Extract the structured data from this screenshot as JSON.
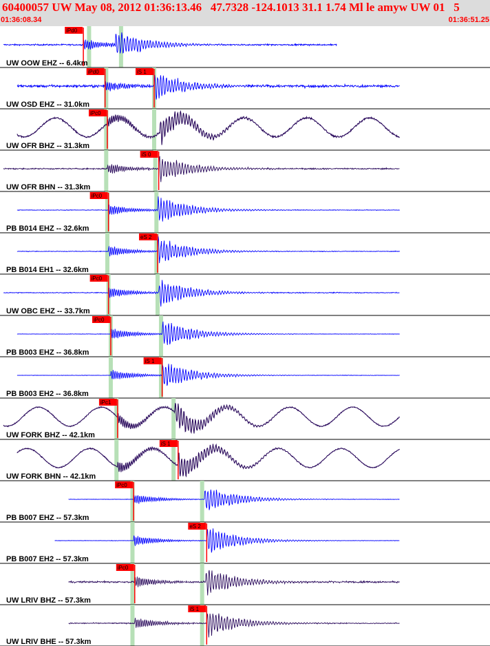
{
  "header": {
    "title": "60400057 UW May 08, 2012 01:36:13.46   47.7328 -124.1013 31.1 1.74 Ml le amyw UW 01   5",
    "time_start": "01:36:08.34",
    "time_end": "01:36:51.25"
  },
  "colors": {
    "header_bg": "#dcdcdc",
    "header_text": "#ff0000",
    "trace_blue": "#0000ff",
    "trace_purple": "#2a0a5c",
    "pick": "#ff0000",
    "band": "#b7e0b7",
    "separator": "#000000"
  },
  "chart_data": {
    "type": "line",
    "title": "60400057 UW May 08, 2012 01:36:13.46   47.7328 -124.1013 31.1 1.74 Ml le amyw UW 01   5",
    "x_range_time": [
      "01:36:08.34",
      "01:36:51.25"
    ],
    "x_unit": "s",
    "x_range_seconds": [
      0,
      42.91
    ],
    "traces": [
      {
        "label": "UW OOW EHZ -- 6.4km",
        "color": "blue",
        "noise": 0.07,
        "p_time": 7.3,
        "s_time": 10.1,
        "end": 29.5,
        "p_pick": "iPd0",
        "s_pick": "",
        "band1": 7.8,
        "band2": 10.6
      },
      {
        "label": "UW OSD EHZ -- 31.0km",
        "color": "blue",
        "noise": 0.12,
        "p_time": 9.2,
        "s_time": 13.5,
        "end": 31.0,
        "p_pick": "iPd0",
        "s_pick": "iS 1",
        "band1": 9.3,
        "band2": 13.5
      },
      {
        "label": "UW OFR BHZ -- 31.3km",
        "color": "purple",
        "noise": 0.08,
        "p_time": 9.4,
        "s_time": 14.0,
        "end": 31.0,
        "p_pick": "iPc0",
        "s_pick": "",
        "band1": 9.3,
        "band2": 13.5,
        "long_period": true
      },
      {
        "label": "UW OFR BHN -- 31.3km",
        "color": "purple",
        "noise": 0.06,
        "p_time": 9.4,
        "s_time": 13.9,
        "end": 31.0,
        "p_pick": "",
        "s_pick": "iS 0",
        "band1": 9.3,
        "band2": 13.6
      },
      {
        "label": "PB B014 EHZ -- 32.6km",
        "color": "blue",
        "noise": 0.03,
        "p_time": 9.5,
        "s_time": 13.8,
        "end": 31.0,
        "p_pick": "iPc0",
        "s_pick": "",
        "band1": 9.4,
        "band2": 13.7
      },
      {
        "label": "PB B014 EH1 -- 32.6km",
        "color": "blue",
        "noise": 0.03,
        "p_time": 9.5,
        "s_time": 13.8,
        "end": 31.0,
        "p_pick": "",
        "s_pick": "eS 2",
        "band1": 9.4,
        "band2": 13.7
      },
      {
        "label": "UW OBC EHZ -- 33.7km",
        "color": "blue",
        "noise": 0.04,
        "p_time": 9.5,
        "s_time": 13.9,
        "end": 31.0,
        "p_pick": "iPc0",
        "s_pick": "",
        "band1": 9.5,
        "band2": 13.8
      },
      {
        "label": "PB B003 EHZ -- 36.8km",
        "color": "blue",
        "noise": 0.02,
        "p_time": 9.7,
        "s_time": 14.2,
        "end": 31.0,
        "p_pick": "iPc0",
        "s_pick": "",
        "band1": 9.7,
        "band2": 14.1
      },
      {
        "label": "PB B003 EH2 -- 36.8km",
        "color": "blue",
        "noise": 0.02,
        "p_time": 9.7,
        "s_time": 14.2,
        "end": 31.0,
        "p_pick": "",
        "s_pick": "iS 1",
        "band1": 9.7,
        "band2": 14.1
      },
      {
        "label": "UW FORK BHZ -- 42.1km",
        "color": "purple",
        "noise": 0.05,
        "p_time": 10.3,
        "s_time": 15.3,
        "end": 31.0,
        "p_pick": "iPc1",
        "s_pick": "",
        "band1": 10.2,
        "band2": 15.2,
        "long_period": true
      },
      {
        "label": "UW FORK BHN -- 42.1km",
        "color": "purple",
        "noise": 0.05,
        "p_time": 10.3,
        "s_time": 15.6,
        "end": 31.0,
        "p_pick": "",
        "s_pick": "iS 1",
        "band1": 10.2,
        "band2": 15.2,
        "long_period": true
      },
      {
        "label": "PB B007 EHZ -- 57.3km",
        "color": "blue",
        "noise": 0.02,
        "p_time": 11.7,
        "s_time": 17.9,
        "end": 31.0,
        "p_pick": "iPc0",
        "s_pick": "",
        "band1": 11.6,
        "band2": 17.7
      },
      {
        "label": "PB B007 EH2 -- 57.3km",
        "color": "blue",
        "noise": 0.02,
        "p_time": 11.7,
        "s_time": 18.1,
        "end": 31.0,
        "p_pick": "",
        "s_pick": "eS 2",
        "band1": 11.6,
        "band2": 17.7
      },
      {
        "label": "UW LRIV BHZ -- 57.3km",
        "color": "purple",
        "noise": 0.08,
        "p_time": 11.8,
        "s_time": 18.0,
        "end": 31.0,
        "p_pick": "iPc0",
        "s_pick": "",
        "band1": 11.6,
        "band2": 17.7
      },
      {
        "label": "UW LRIV BHE -- 57.3km",
        "color": "purple",
        "noise": 0.05,
        "p_time": 11.8,
        "s_time": 18.1,
        "end": 31.0,
        "p_pick": "",
        "s_pick": "iS 1",
        "band1": 11.6,
        "band2": 17.7
      }
    ]
  }
}
